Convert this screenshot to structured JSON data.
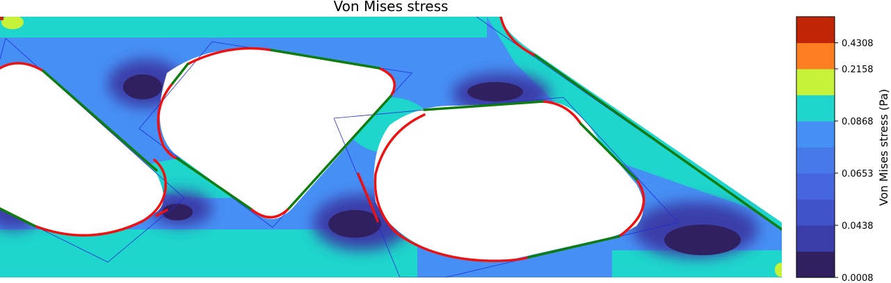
{
  "chart_data": {
    "type": "heatmap",
    "title": "Von Mises stress",
    "colorbar": {
      "label": "Von Mises stress (Pa)",
      "levels": [
        {
          "color": "#30205f"
        },
        {
          "color": "#3a3da8"
        },
        {
          "color": "#4053c8"
        },
        {
          "color": "#4566de"
        },
        {
          "color": "#467ae8"
        },
        {
          "color": "#4690f5"
        },
        {
          "color": "#1ed6cc"
        },
        {
          "color": "#c6f23a"
        },
        {
          "color": "#fb7e21"
        },
        {
          "color": "#c02505"
        }
      ],
      "tick_labels": [
        "0.0008",
        "0.0438",
        "0.0653",
        "0.0868",
        "0.2158",
        "0.4308"
      ]
    },
    "overlays": {
      "curve_colors": {
        "fillet": "#ee1111",
        "straight": "#0e7d0e",
        "frame": "#1f2bd6"
      }
    }
  }
}
